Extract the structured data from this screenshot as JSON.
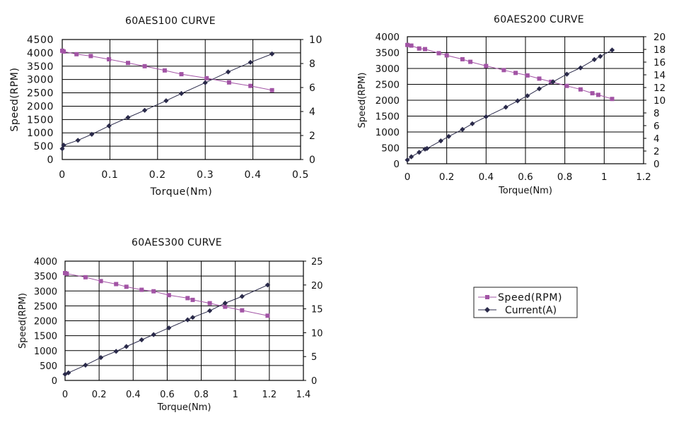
{
  "legend": {
    "items": [
      {
        "label": "Speed(RPM)",
        "color": "#a254a5",
        "marker": "square"
      },
      {
        "label": "Current(A)",
        "color": "#2a2a4a",
        "marker": "diamond"
      }
    ]
  },
  "chart_data": [
    {
      "type": "line",
      "title": "60AES100 CURVE",
      "xlabel": "Torque(Nm)",
      "ylabel": "Speed(RPM)",
      "y2label": "",
      "xlim": [
        0,
        0.5
      ],
      "ylim": [
        0,
        4500
      ],
      "y2lim": [
        0,
        10
      ],
      "x_ticks": [
        "0",
        "0.1",
        "0.2",
        "0.3",
        "0.4",
        "0.5"
      ],
      "y_ticks": [
        "0",
        "500",
        "1000",
        "1500",
        "2000",
        "2500",
        "3000",
        "3500",
        "4000",
        "4500"
      ],
      "y2_ticks": [
        "0",
        "2",
        "4",
        "6",
        "8",
        "10"
      ],
      "grid": true,
      "series": [
        {
          "name": "Speed(RPM)",
          "axis": "left",
          "color": "#a254a5",
          "marker": "square",
          "x": [
            0,
            0.003,
            0.03,
            0.06,
            0.098,
            0.138,
            0.173,
            0.215,
            0.25,
            0.303,
            0.35,
            0.395,
            0.44
          ],
          "y": [
            4080,
            4050,
            3950,
            3880,
            3760,
            3620,
            3500,
            3340,
            3200,
            3050,
            2890,
            2760,
            2600
          ]
        },
        {
          "name": "Current(A)",
          "axis": "right",
          "color": "#2a2a4a",
          "marker": "diamond",
          "x": [
            0,
            0.003,
            0.033,
            0.062,
            0.098,
            0.138,
            0.173,
            0.218,
            0.25,
            0.3,
            0.348,
            0.395,
            0.44
          ],
          "y": [
            0.9,
            1.2,
            1.6,
            2.1,
            2.8,
            3.5,
            4.1,
            4.9,
            5.5,
            6.4,
            7.3,
            8.1,
            8.8
          ]
        }
      ]
    },
    {
      "type": "line",
      "title": "60AES200 CURVE",
      "xlabel": "Torque(Nm)",
      "ylabel": "Speed(RPM)",
      "y2label": "",
      "xlim": [
        0,
        1.2
      ],
      "ylim": [
        0,
        4000
      ],
      "y2lim": [
        0,
        20
      ],
      "x_ticks": [
        "0",
        "0.2",
        "0.4",
        "0.6",
        "0.8",
        "1",
        "1.2"
      ],
      "y_ticks": [
        "0",
        "500",
        "1000",
        "1500",
        "2000",
        "2500",
        "3000",
        "3500",
        "4000"
      ],
      "y2_ticks": [
        "0",
        "2",
        "4",
        "6",
        "8",
        "10",
        "12",
        "14",
        "16",
        "18",
        "20"
      ],
      "grid": true,
      "series": [
        {
          "name": "Speed(RPM)",
          "axis": "left",
          "color": "#a254a5",
          "marker": "square",
          "x": [
            0,
            0.02,
            0.06,
            0.09,
            0.16,
            0.2,
            0.28,
            0.32,
            0.4,
            0.49,
            0.55,
            0.61,
            0.67,
            0.73,
            0.81,
            0.88,
            0.94,
            0.97,
            1.04
          ],
          "y": [
            3740,
            3720,
            3630,
            3610,
            3480,
            3410,
            3290,
            3210,
            3080,
            2950,
            2860,
            2780,
            2680,
            2580,
            2450,
            2340,
            2220,
            2170,
            2040
          ]
        },
        {
          "name": "Current(A)",
          "axis": "right",
          "color": "#2a2a4a",
          "marker": "diamond",
          "x": [
            0,
            0.02,
            0.06,
            0.09,
            0.1,
            0.17,
            0.21,
            0.28,
            0.33,
            0.4,
            0.5,
            0.56,
            0.61,
            0.67,
            0.74,
            0.81,
            0.88,
            0.95,
            0.98,
            1.04
          ],
          "y": [
            0.6,
            1.1,
            1.8,
            2.3,
            2.4,
            3.6,
            4.3,
            5.4,
            6.3,
            7.4,
            8.9,
            9.9,
            10.7,
            11.8,
            12.9,
            14.1,
            15.1,
            16.4,
            16.9,
            17.9
          ]
        }
      ]
    },
    {
      "type": "line",
      "title": "60AES300 CURVE",
      "xlabel": "Torque(Nm)",
      "ylabel": "Speed(RPM)",
      "y2label": "",
      "xlim": [
        0,
        1.4
      ],
      "ylim": [
        0,
        4000
      ],
      "y2lim": [
        0,
        25
      ],
      "x_ticks": [
        "0",
        "0.2",
        "0.4",
        "0.6",
        "0.8",
        "1",
        "1.2",
        "1.4"
      ],
      "y_ticks": [
        "0",
        "500",
        "1000",
        "1500",
        "2000",
        "2500",
        "3000",
        "3500",
        "4000"
      ],
      "y2_ticks": [
        "0",
        "5",
        "10",
        "15",
        "20",
        "25"
      ],
      "grid": true,
      "series": [
        {
          "name": "Speed(RPM)",
          "axis": "left",
          "color": "#a254a5",
          "marker": "square",
          "x": [
            0,
            0.01,
            0.12,
            0.21,
            0.3,
            0.36,
            0.45,
            0.52,
            0.61,
            0.72,
            0.75,
            0.85,
            0.94,
            1.04,
            1.19
          ],
          "y": [
            3600,
            3580,
            3460,
            3330,
            3230,
            3140,
            3040,
            2990,
            2860,
            2760,
            2700,
            2590,
            2470,
            2350,
            2170
          ]
        },
        {
          "name": "Current(A)",
          "axis": "right",
          "color": "#2a2a4a",
          "marker": "diamond",
          "x": [
            0,
            0.02,
            0.12,
            0.21,
            0.3,
            0.36,
            0.45,
            0.52,
            0.61,
            0.72,
            0.75,
            0.85,
            0.94,
            1.04,
            1.19
          ],
          "y": [
            1.3,
            1.6,
            3.2,
            4.8,
            6.1,
            7.1,
            8.5,
            9.6,
            11.0,
            12.7,
            13.2,
            14.6,
            16.2,
            17.6,
            20.0
          ]
        }
      ]
    }
  ]
}
